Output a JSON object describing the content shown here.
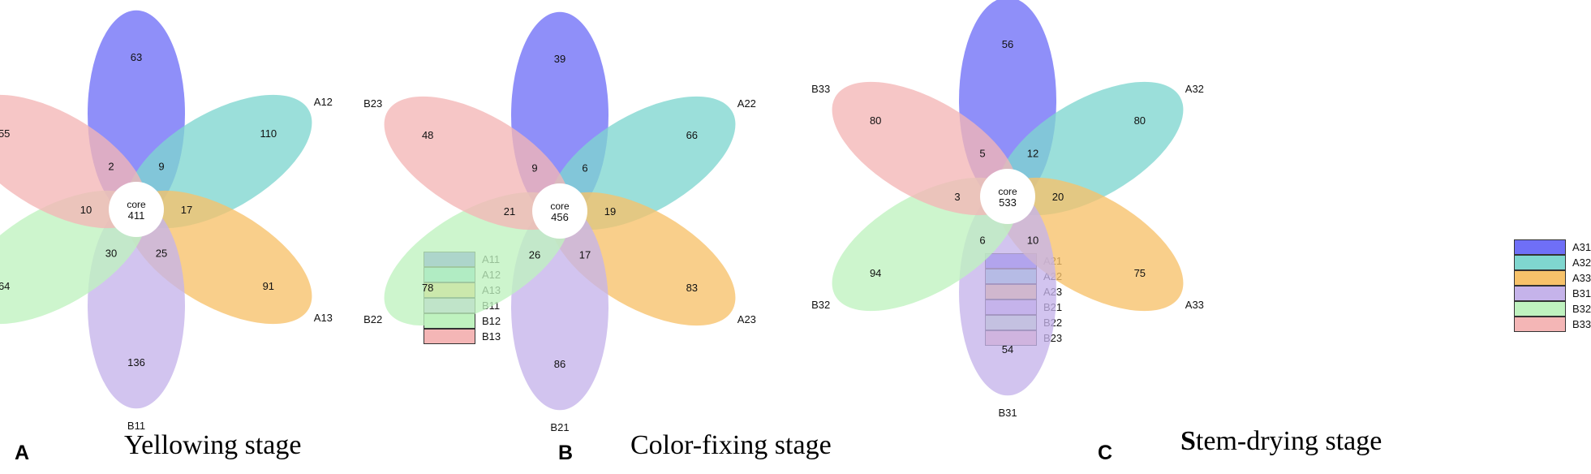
{
  "panels": [
    {
      "letter": "A",
      "caption": "Yellowing stage",
      "caption_lead": "",
      "caption_rest": "Yellowing stage",
      "core_label": "core",
      "core_value": "411",
      "petals": [
        {
          "name": "A11",
          "value": "63",
          "color": "#6f6ff7"
        },
        {
          "name": "A12",
          "value": "110",
          "color": "#7fd6cf"
        },
        {
          "name": "A13",
          "value": "91",
          "color": "#f7c26a"
        },
        {
          "name": "B11",
          "value": "136",
          "color": "#c5b3ea"
        },
        {
          "name": "B12",
          "value": "64",
          "color": "#bff2bf"
        },
        {
          "name": "B13",
          "value": "55",
          "color": "#f4b6b6"
        }
      ],
      "overlaps": [
        "9",
        "17",
        "25",
        "30",
        "10",
        "2"
      ]
    },
    {
      "letter": "B",
      "caption": "Color-fixing stage",
      "caption_lead": "",
      "caption_rest": "Color-fixing stage",
      "core_label": "core",
      "core_value": "456",
      "petals": [
        {
          "name": "A21",
          "value": "39",
          "color": "#6f6ff7"
        },
        {
          "name": "A22",
          "value": "66",
          "color": "#7fd6cf"
        },
        {
          "name": "A23",
          "value": "83",
          "color": "#f7c26a"
        },
        {
          "name": "B21",
          "value": "86",
          "color": "#c5b3ea"
        },
        {
          "name": "B22",
          "value": "78",
          "color": "#bff2bf"
        },
        {
          "name": "B23",
          "value": "48",
          "color": "#f4b6b6"
        }
      ],
      "overlaps": [
        "6",
        "19",
        "17",
        "26",
        "21",
        "9"
      ]
    },
    {
      "letter": "C",
      "caption": "Stem-drying stage",
      "caption_lead": "S",
      "caption_rest": "tem-drying stage",
      "core_label": "core",
      "core_value": "533",
      "petals": [
        {
          "name": "A31",
          "value": "56",
          "color": "#6f6ff7"
        },
        {
          "name": "A32",
          "value": "80",
          "color": "#7fd6cf"
        },
        {
          "name": "A33",
          "value": "75",
          "color": "#f7c26a"
        },
        {
          "name": "B31",
          "value": "54",
          "color": "#c5b3ea"
        },
        {
          "name": "B32",
          "value": "94",
          "color": "#bff2bf"
        },
        {
          "name": "B33",
          "value": "80",
          "color": "#f4b6b6"
        }
      ],
      "overlaps": [
        "12",
        "20",
        "10",
        "6",
        "3",
        "5"
      ]
    }
  ]
}
